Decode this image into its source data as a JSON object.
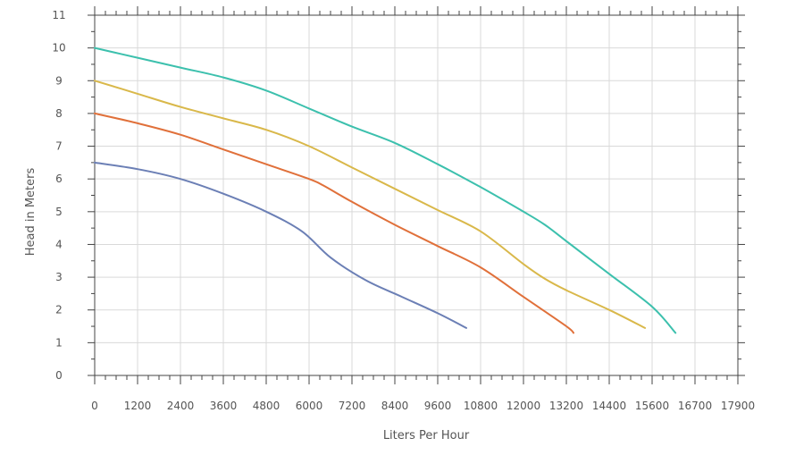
{
  "chart_data": {
    "type": "line",
    "title": "",
    "xlabel": "Liters Per Hour",
    "ylabel": "Head in Meters",
    "xlim": [
      0,
      17900
    ],
    "ylim": [
      0,
      11
    ],
    "xticks": [
      0,
      1200,
      2400,
      3600,
      4800,
      6000,
      7200,
      8400,
      9600,
      10800,
      12000,
      13200,
      14400,
      15600,
      16700,
      17900
    ],
    "yticks": [
      0,
      1,
      2,
      3,
      4,
      5,
      6,
      7,
      8,
      9,
      10,
      11
    ],
    "grid": true,
    "legend": "none",
    "series": [
      {
        "color": "#6b7fb5",
        "x": [
          0,
          1200,
          2400,
          3600,
          4800,
          5800,
          6600,
          7600,
          8600,
          9600,
          10400
        ],
        "y": [
          6.5,
          6.3,
          6.0,
          5.55,
          5.0,
          4.4,
          3.6,
          2.9,
          2.4,
          1.9,
          1.45
        ]
      },
      {
        "color": "#e0703a",
        "x": [
          0,
          1200,
          2400,
          3600,
          4800,
          6000,
          6400,
          7200,
          8400,
          9600,
          10800,
          12000,
          13200,
          13400
        ],
        "y": [
          8.0,
          7.7,
          7.35,
          6.9,
          6.45,
          6.0,
          5.8,
          5.3,
          4.6,
          3.95,
          3.3,
          2.4,
          1.5,
          1.3
        ]
      },
      {
        "color": "#d9b84a",
        "x": [
          0,
          1200,
          2400,
          3600,
          4800,
          6000,
          7200,
          8400,
          9600,
          10800,
          12000,
          12600,
          13200,
          14400,
          15400
        ],
        "y": [
          9.0,
          8.6,
          8.2,
          7.85,
          7.5,
          7.0,
          6.35,
          5.7,
          5.05,
          4.4,
          3.4,
          2.95,
          2.6,
          2.0,
          1.45
        ]
      },
      {
        "color": "#3cc0ad",
        "x": [
          0,
          1200,
          2400,
          3600,
          4800,
          6000,
          7200,
          8400,
          9600,
          10800,
          12000,
          12600,
          13200,
          14400,
          15600,
          16200
        ],
        "y": [
          10.0,
          9.7,
          9.4,
          9.1,
          8.7,
          8.15,
          7.6,
          7.1,
          6.45,
          5.75,
          5.0,
          4.6,
          4.1,
          3.1,
          2.1,
          1.3
        ]
      }
    ]
  }
}
